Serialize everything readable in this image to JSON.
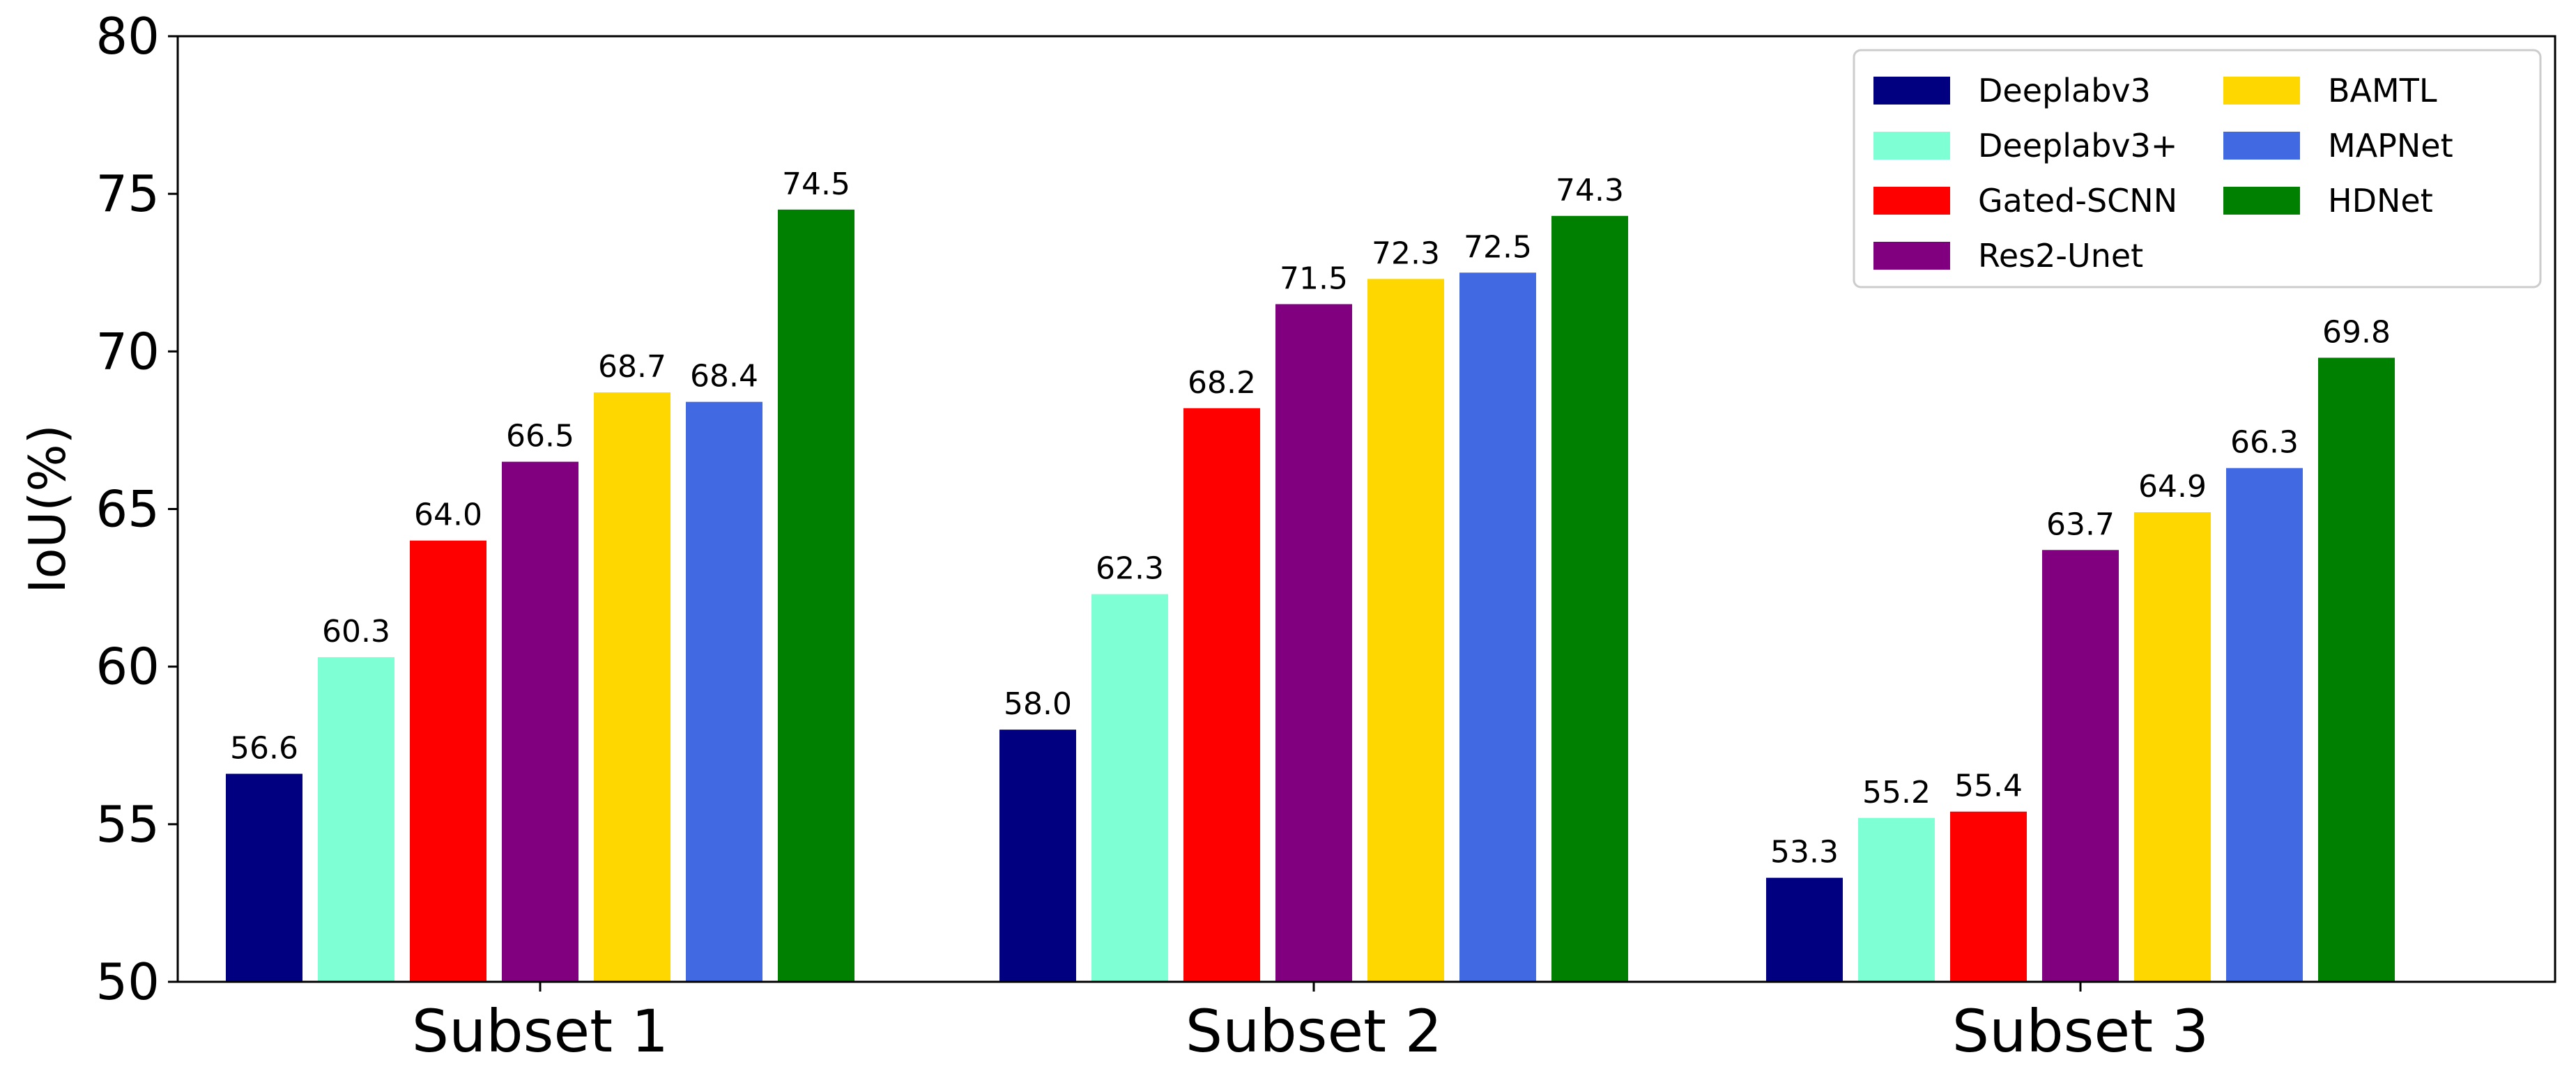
{
  "chart_data": {
    "type": "bar",
    "title": "",
    "xlabel": "",
    "ylabel": "IoU(%)",
    "ylim": [
      50,
      80
    ],
    "yticks": [
      "50",
      "55",
      "60",
      "65",
      "70",
      "75",
      "80"
    ],
    "categories": [
      "Subset 1",
      "Subset 2",
      "Subset 3"
    ],
    "grid": false,
    "legend_position": "top-right",
    "series": [
      {
        "name": "Deeplabv3",
        "color": "#000080",
        "values": [
          56.6,
          58.0,
          53.3
        ]
      },
      {
        "name": "Deeplabv3+",
        "color": "#7FFFD4",
        "values": [
          60.3,
          62.3,
          55.2
        ]
      },
      {
        "name": "Gated-SCNN",
        "color": "#FF0000",
        "values": [
          64.0,
          68.2,
          55.4
        ]
      },
      {
        "name": "Res2-Unet",
        "color": "#800080",
        "values": [
          66.5,
          71.5,
          63.7
        ]
      },
      {
        "name": "BAMTL",
        "color": "#FFD700",
        "values": [
          68.7,
          72.3,
          64.9
        ]
      },
      {
        "name": "MAPNet",
        "color": "#4169E1",
        "values": [
          68.4,
          72.5,
          66.3
        ]
      },
      {
        "name": "HDNet",
        "color": "#008000",
        "values": [
          74.5,
          74.3,
          69.8
        ]
      }
    ]
  }
}
